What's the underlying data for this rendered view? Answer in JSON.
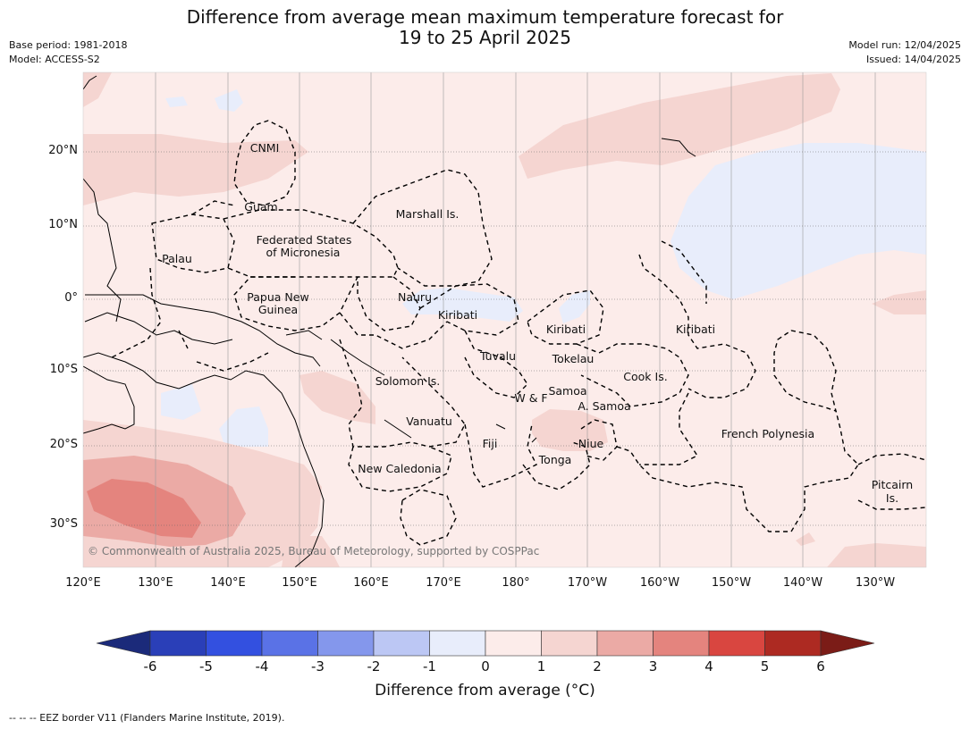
{
  "title": {
    "line1": "Difference from average mean maximum temperature forecast for",
    "line2": "19 to 25 April 2025"
  },
  "meta": {
    "base_period": "Base period: 1981-2018",
    "model": "Model: ACCESS-S2",
    "model_run": "Model run: 12/04/2025",
    "issued": "Issued: 14/04/2025"
  },
  "map": {
    "lon_labels": [
      "120°E",
      "130°E",
      "140°E",
      "150°E",
      "160°E",
      "170°E",
      "180°",
      "170°W",
      "160°W",
      "150°W",
      "140°W",
      "130°W"
    ],
    "lat_labels": [
      "20°N",
      "10°N",
      "0°",
      "10°S",
      "20°S",
      "30°S"
    ],
    "regions": [
      "CNMI",
      "Guam",
      "Marshall Is.",
      "Federated States",
      "of Micronesia",
      "Palau",
      "Papua New",
      "Guinea",
      "Nauru",
      "Kiribati",
      "Kiribati",
      "Kiribati",
      "Tuvalu",
      "Tokelau",
      "Cook Is.",
      "Solomon Is.",
      "Samoa",
      "W & F",
      "A. Samoa",
      "Vanuatu",
      "Fiji",
      "Niue",
      "Tonga",
      "New Caledonia",
      "French Polynesia",
      "Pitcairn",
      "Is."
    ],
    "credit": "© Commonwealth of Australia 2025, Bureau of Meteorology, supported by COSPPac"
  },
  "colorbar": {
    "ticks": [
      "-6",
      "-5",
      "-4",
      "-3",
      "-2",
      "-1",
      "0",
      "1",
      "2",
      "3",
      "4",
      "5",
      "6"
    ],
    "colors": [
      "#1b2a7a",
      "#2a3fb8",
      "#3350e0",
      "#5a72e6",
      "#8497ec",
      "#bcc7f4",
      "#e8edfb",
      "#fcecea",
      "#f5d5d1",
      "#ebaaa5",
      "#e4847e",
      "#d94640",
      "#ad2a22",
      "#7b1c17"
    ],
    "label": "Difference from average (°C)"
  },
  "footer": "--  --  -- EEZ border V11 (Flanders Marine Institute, 2019)."
}
